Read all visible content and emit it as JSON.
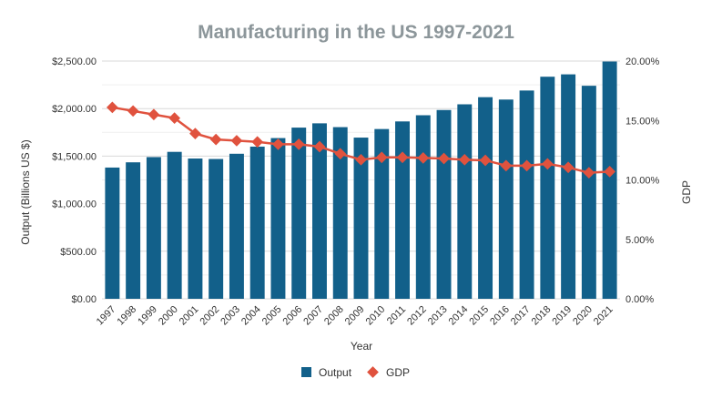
{
  "chart_data": {
    "type": "bar",
    "title": "Manufacturing in the US 1997-2021",
    "xlabel": "Year",
    "ylabel": "Output (Billions US $)",
    "y2label": "GDP",
    "categories": [
      "1997",
      "1998",
      "1999",
      "2000",
      "2001",
      "2002",
      "2003",
      "2004",
      "2005",
      "2006",
      "2007",
      "2008",
      "2009",
      "2010",
      "2011",
      "2012",
      "2013",
      "2014",
      "2015",
      "2016",
      "2017",
      "2018",
      "2019",
      "2020",
      "2021"
    ],
    "ylim": [
      0,
      2500
    ],
    "y2lim": [
      0,
      20
    ],
    "yticks": [
      "$0.00",
      "$500.00",
      "$1,000.00",
      "$1,500.00",
      "$2,000.00",
      "$2,500.00"
    ],
    "y2ticks": [
      "0.00%",
      "5.00%",
      "10.00%",
      "15.00%",
      "20.00%"
    ],
    "grid": true,
    "legend_position": "bottom",
    "series": [
      {
        "name": "Output",
        "type": "bar",
        "axis": "left",
        "color": "#12608a",
        "values": [
          1380,
          1435,
          1490,
          1545,
          1475,
          1470,
          1525,
          1600,
          1690,
          1800,
          1845,
          1805,
          1695,
          1785,
          1865,
          1930,
          1985,
          2045,
          2120,
          2095,
          2190,
          2335,
          2360,
          2240,
          2495
        ]
      },
      {
        "name": "GDP",
        "type": "line",
        "axis": "right",
        "color": "#e0523e",
        "values": [
          16.1,
          15.8,
          15.5,
          15.2,
          13.9,
          13.4,
          13.3,
          13.2,
          13.0,
          13.0,
          12.8,
          12.2,
          11.7,
          11.9,
          11.9,
          11.85,
          11.8,
          11.7,
          11.65,
          11.2,
          11.2,
          11.35,
          11.05,
          10.6,
          10.7
        ]
      }
    ]
  }
}
